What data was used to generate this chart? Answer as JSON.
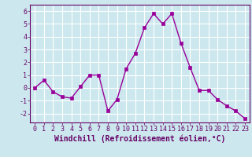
{
  "x": [
    0,
    1,
    2,
    3,
    4,
    5,
    6,
    7,
    8,
    9,
    10,
    11,
    12,
    13,
    14,
    15,
    16,
    17,
    18,
    19,
    20,
    21,
    22,
    23
  ],
  "y": [
    0.0,
    0.6,
    -0.3,
    -0.7,
    -0.8,
    0.1,
    1.0,
    1.0,
    -1.8,
    -0.9,
    1.5,
    2.7,
    4.7,
    5.8,
    5.0,
    5.8,
    3.5,
    1.6,
    -0.2,
    -0.2,
    -0.9,
    -1.4,
    -1.8,
    -2.4
  ],
  "line_color": "#990099",
  "marker": "s",
  "markersize": 2.5,
  "linewidth": 1.0,
  "xlim": [
    -0.5,
    23.5
  ],
  "ylim": [
    -2.7,
    6.5
  ],
  "yticks": [
    -2,
    -1,
    0,
    1,
    2,
    3,
    4,
    5,
    6
  ],
  "xticks": [
    0,
    1,
    2,
    3,
    4,
    5,
    6,
    7,
    8,
    9,
    10,
    11,
    12,
    13,
    14,
    15,
    16,
    17,
    18,
    19,
    20,
    21,
    22,
    23
  ],
  "xlabel": "Windchill (Refroidissement éolien,°C)",
  "bg_color": "#cce8ee",
  "grid_color": "#ffffff",
  "label_color": "#660066",
  "tick_color": "#660066",
  "tick_fontsize": 6,
  "xlabel_fontsize": 7,
  "spine_color": "#660066"
}
